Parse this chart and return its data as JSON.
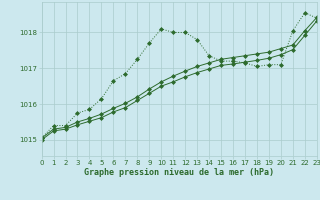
{
  "bg_color": "#cce8ee",
  "grid_color": "#aacccc",
  "line_color": "#2d6b2d",
  "xlabel": "Graphe pression niveau de la mer (hPa)",
  "xlabel_color": "#2d6b2d",
  "xmin": 0,
  "xmax": 23,
  "ymin": 1014.55,
  "ymax": 1018.85,
  "yticks": [
    1015,
    1016,
    1017,
    1018
  ],
  "xticks": [
    0,
    1,
    2,
    3,
    4,
    5,
    6,
    7,
    8,
    9,
    10,
    11,
    12,
    13,
    14,
    15,
    16,
    17,
    18,
    19,
    20,
    21,
    22,
    23
  ],
  "line1_x": [
    0,
    1,
    2,
    3,
    4,
    5,
    6,
    7,
    8,
    9,
    10,
    11,
    12,
    13,
    14,
    15,
    16,
    17,
    18,
    19,
    20,
    21,
    22,
    23
  ],
  "line1_y": [
    1015.05,
    1015.4,
    1015.4,
    1015.75,
    1015.85,
    1016.15,
    1016.65,
    1016.85,
    1017.25,
    1017.7,
    1018.1,
    1018.0,
    1018.0,
    1017.8,
    1017.35,
    1017.2,
    1017.2,
    1017.15,
    1017.05,
    1017.1,
    1017.1,
    1018.05,
    1018.55,
    1018.4
  ],
  "line1_marker_x": [
    0,
    1,
    2,
    3,
    4,
    5,
    6,
    7,
    8,
    9,
    10,
    11,
    12,
    13,
    14,
    15,
    16,
    17,
    18,
    19,
    20,
    21,
    22,
    23
  ],
  "line2_x": [
    0,
    1,
    2,
    3,
    4,
    5,
    6,
    7,
    8,
    9,
    10,
    11,
    12,
    13,
    14,
    15,
    16,
    17,
    18,
    19,
    20,
    21,
    22,
    23
  ],
  "line2_y": [
    1015.05,
    1015.3,
    1015.35,
    1015.5,
    1015.6,
    1015.72,
    1015.88,
    1016.02,
    1016.2,
    1016.42,
    1016.62,
    1016.78,
    1016.92,
    1017.05,
    1017.15,
    1017.25,
    1017.3,
    1017.35,
    1017.4,
    1017.45,
    1017.55,
    1017.65,
    1018.05,
    1018.42
  ],
  "line3_x": [
    0,
    1,
    2,
    3,
    4,
    5,
    6,
    7,
    8,
    9,
    10,
    11,
    12,
    13,
    14,
    15,
    16,
    17,
    18,
    19,
    20,
    21,
    22,
    23
  ],
  "line3_y": [
    1015.0,
    1015.25,
    1015.3,
    1015.42,
    1015.52,
    1015.62,
    1015.78,
    1015.9,
    1016.1,
    1016.3,
    1016.5,
    1016.62,
    1016.76,
    1016.88,
    1016.98,
    1017.08,
    1017.12,
    1017.17,
    1017.22,
    1017.28,
    1017.38,
    1017.52,
    1017.92,
    1018.32
  ]
}
